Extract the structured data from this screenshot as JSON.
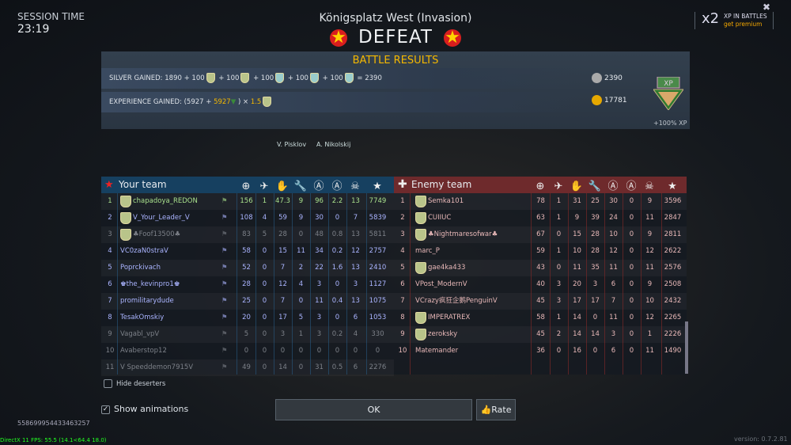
{
  "session": {
    "label": "SESSION TIME",
    "time": "23:19"
  },
  "map_title": "Königsplatz West (Invasion)",
  "result": "DEFEAT",
  "premium": {
    "multiplier": "x2",
    "line1": "XP IN BATTLES",
    "line2": "get premium"
  },
  "battle_results": {
    "title": "BATTLE RESULTS",
    "silver_label": "SILVER GAINED:",
    "silver_formula_parts": [
      "1890 + 100",
      "+ 100",
      "+ 100",
      "+ 100",
      "+ 100"
    ],
    "silver_total": "= 2390",
    "exp_label": "EXPERIENCE GAINED:",
    "exp_base": "(5927 +",
    "exp_bonus": "5927",
    "exp_close": ") ×",
    "exp_mult": "1.5",
    "silver_result": "2390",
    "exp_result": "17781",
    "xp_note": "+100% XP"
  },
  "crew": [
    "V. Pisklov",
    "A. Nikolskij"
  ],
  "your_team": {
    "title": "Your team",
    "color": "#164060",
    "rows": [
      {
        "n": "1",
        "name": "chapadoya_REDON",
        "s": [
          "156",
          "1",
          "47.3",
          "9",
          "96",
          "2.2",
          "13",
          "7749"
        ],
        "tone": "self"
      },
      {
        "n": "2",
        "name": "V_Your_Leader_V",
        "s": [
          "108",
          "4",
          "59",
          "9",
          "30",
          "0",
          "7",
          "5839"
        ],
        "tone": "ally"
      },
      {
        "n": "3",
        "name": "♣Foof13500♣",
        "s": [
          "83",
          "5",
          "28",
          "0",
          "48",
          "0.8",
          "13",
          "5811"
        ],
        "tone": "gone"
      },
      {
        "n": "4",
        "name": "VC0zaN0straV",
        "s": [
          "58",
          "0",
          "15",
          "11",
          "34",
          "0.2",
          "12",
          "2757"
        ],
        "tone": "ally"
      },
      {
        "n": "5",
        "name": "Poprckivach",
        "s": [
          "52",
          "0",
          "7",
          "2",
          "22",
          "1.6",
          "13",
          "2410"
        ],
        "tone": "ally"
      },
      {
        "n": "6",
        "name": "♚the_kevinpro1♚",
        "s": [
          "28",
          "0",
          "12",
          "4",
          "3",
          "0",
          "3",
          "1127"
        ],
        "tone": "ally"
      },
      {
        "n": "7",
        "name": "promilitarydude",
        "s": [
          "25",
          "0",
          "7",
          "0",
          "11",
          "0.4",
          "13",
          "1075"
        ],
        "tone": "ally"
      },
      {
        "n": "8",
        "name": "TesakOmskiy",
        "s": [
          "20",
          "0",
          "17",
          "5",
          "3",
          "0",
          "6",
          "1053"
        ],
        "tone": "ally"
      },
      {
        "n": "9",
        "name": "Vagabl_vpV",
        "s": [
          "5",
          "0",
          "3",
          "1",
          "3",
          "0.2",
          "4",
          "330"
        ],
        "tone": "gone"
      },
      {
        "n": "10",
        "name": "Avaberstop12",
        "s": [
          "0",
          "0",
          "0",
          "0",
          "0",
          "0",
          "0",
          "0"
        ],
        "tone": "gone"
      },
      {
        "n": "11",
        "name": "V Speeddemon7915V",
        "s": [
          "49",
          "0",
          "14",
          "0",
          "31",
          "0.5",
          "6",
          "2276"
        ],
        "tone": "gone"
      }
    ]
  },
  "enemy_team": {
    "title": "Enemy team",
    "color": "#6e2a2c",
    "rows": [
      {
        "n": "1",
        "name": "Semka101",
        "s": [
          "78",
          "1",
          "31",
          "25",
          "30",
          "0",
          "9",
          "3596"
        ]
      },
      {
        "n": "2",
        "name": "CUIIUC",
        "s": [
          "63",
          "1",
          "9",
          "39",
          "24",
          "0",
          "11",
          "2847"
        ]
      },
      {
        "n": "3",
        "name": "♣Nightmaresofwar♣",
        "s": [
          "67",
          "0",
          "15",
          "28",
          "10",
          "0",
          "9",
          "2811"
        ]
      },
      {
        "n": "4",
        "name": "marc_P",
        "s": [
          "59",
          "1",
          "10",
          "28",
          "12",
          "0",
          "12",
          "2622"
        ]
      },
      {
        "n": "5",
        "name": "gae4ka433",
        "s": [
          "43",
          "0",
          "11",
          "35",
          "11",
          "0",
          "11",
          "2576"
        ]
      },
      {
        "n": "6",
        "name": "VPost_ModernV",
        "s": [
          "40",
          "3",
          "20",
          "3",
          "6",
          "0",
          "9",
          "2508"
        ]
      },
      {
        "n": "7",
        "name": "VCrazy疯狂企鹅PenguinV",
        "s": [
          "45",
          "3",
          "17",
          "17",
          "7",
          "0",
          "10",
          "2432"
        ]
      },
      {
        "n": "8",
        "name": "IMPERATREX",
        "s": [
          "58",
          "1",
          "14",
          "0",
          "11",
          "0",
          "12",
          "2265"
        ]
      },
      {
        "n": "9",
        "name": "zeroksky",
        "s": [
          "45",
          "2",
          "14",
          "14",
          "3",
          "0",
          "1",
          "2226"
        ]
      },
      {
        "n": "10",
        "name": "Matemander",
        "s": [
          "36",
          "0",
          "16",
          "0",
          "6",
          "0",
          "11",
          "1490"
        ]
      }
    ]
  },
  "columns_icons": [
    "crosshair-icon",
    "plane-kill-icon",
    "assist-hand-icon",
    "wrench-icon",
    "capture-shield-icon",
    "capture-a-icon",
    "skull-icon",
    "star-icon"
  ],
  "hide_deserters": "Hide deserters",
  "show_animations": "Show animations",
  "ok": "OK",
  "rate": "Rate",
  "battle_id": "558699954433463257",
  "fps": "DirectX 11 FPS: 55.5 (14.1<64.4 18.0)",
  "version": "version: 0.7.2.81"
}
